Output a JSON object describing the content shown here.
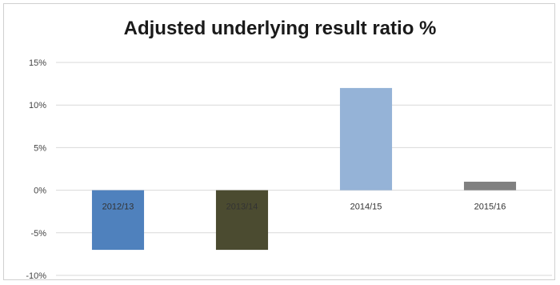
{
  "chart_data": {
    "type": "bar",
    "title": "Adjusted underlying result ratio %",
    "xlabel": "",
    "ylabel": "",
    "categories": [
      "2012/13",
      "2013/14",
      "2014/15",
      "2015/16"
    ],
    "values": [
      -7,
      -7,
      12,
      1
    ],
    "bar_colors": [
      "#4f81bd",
      "#4b4b30",
      "#95b3d7",
      "#808080"
    ],
    "ylim": [
      -10,
      15
    ],
    "yticks": [
      15,
      10,
      5,
      0,
      -5,
      -10
    ],
    "ytick_labels": [
      "15%",
      "10%",
      "5%",
      "0%",
      "-5%",
      "-10%"
    ],
    "grid": true,
    "legend": "none"
  }
}
